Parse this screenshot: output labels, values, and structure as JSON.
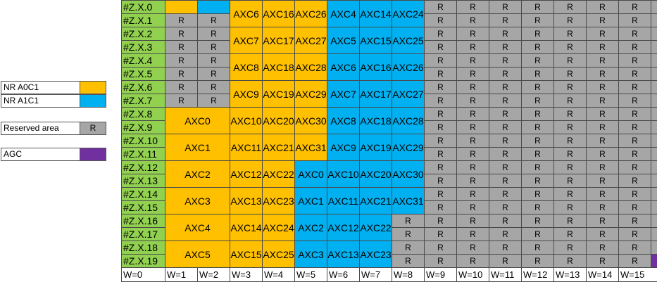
{
  "colors": {
    "nr_a0c1": "#FFC000",
    "nr_a1c1": "#00B0F0",
    "reserved": "#A6A6A6",
    "agc": "#7030A0",
    "row_label": "#92D050",
    "white": "#FFFFFF"
  },
  "legend": [
    {
      "label": "NR A0C1",
      "color_key": "nr_a0c1",
      "text": ""
    },
    {
      "label": "NR A1C1",
      "color_key": "nr_a1c1",
      "text": ""
    },
    {
      "label": "Reserved area",
      "color_key": "reserved",
      "text": "R"
    },
    {
      "label": "AGC",
      "color_key": "agc",
      "text": ""
    }
  ],
  "rows": [
    "#Z.X.0",
    "#Z.X.1",
    "#Z.X.2",
    "#Z.X.3",
    "#Z.X.4",
    "#Z.X.5",
    "#Z.X.6",
    "#Z.X.7",
    "#Z.X.8",
    "#Z.X.9",
    "#Z.X.10",
    "#Z.X.11",
    "#Z.X.12",
    "#Z.X.13",
    "#Z.X.14",
    "#Z.X.15",
    "#Z.X.16",
    "#Z.X.17",
    "#Z.X.18",
    "#Z.X.19"
  ],
  "columns": [
    "W=0",
    "W=1",
    "W=2",
    "W=3",
    "W=4",
    "W=5",
    "W=6",
    "W=7",
    "W=8",
    "W=9",
    "W=10",
    "W=11",
    "W=12",
    "W=13",
    "W=14",
    "W=15"
  ],
  "reserved_text": "R",
  "blocks": [
    {
      "row": 0,
      "col": 1,
      "rowspan": 1,
      "colspan": 1,
      "color": "nr_a0c1",
      "text": ""
    },
    {
      "row": 0,
      "col": 2,
      "rowspan": 1,
      "colspan": 1,
      "color": "nr_a1c1",
      "text": ""
    },
    {
      "row": 0,
      "col": 3,
      "rowspan": 2,
      "colspan": 1,
      "color": "nr_a0c1",
      "text": "AXC6"
    },
    {
      "row": 0,
      "col": 4,
      "rowspan": 2,
      "colspan": 1,
      "color": "nr_a0c1",
      "text": "AXC16"
    },
    {
      "row": 0,
      "col": 5,
      "rowspan": 2,
      "colspan": 1,
      "color": "nr_a0c1",
      "text": "AXC26"
    },
    {
      "row": 0,
      "col": 6,
      "rowspan": 2,
      "colspan": 1,
      "color": "nr_a1c1",
      "text": "AXC4"
    },
    {
      "row": 0,
      "col": 7,
      "rowspan": 2,
      "colspan": 1,
      "color": "nr_a1c1",
      "text": "AXC14"
    },
    {
      "row": 0,
      "col": 8,
      "rowspan": 2,
      "colspan": 1,
      "color": "nr_a1c1",
      "text": "AXC24"
    },
    {
      "row": 2,
      "col": 3,
      "rowspan": 2,
      "colspan": 1,
      "color": "nr_a0c1",
      "text": "AXC7"
    },
    {
      "row": 2,
      "col": 4,
      "rowspan": 2,
      "colspan": 1,
      "color": "nr_a0c1",
      "text": "AXC17"
    },
    {
      "row": 2,
      "col": 5,
      "rowspan": 2,
      "colspan": 1,
      "color": "nr_a0c1",
      "text": "AXC27"
    },
    {
      "row": 2,
      "col": 6,
      "rowspan": 2,
      "colspan": 1,
      "color": "nr_a1c1",
      "text": "AXC5"
    },
    {
      "row": 2,
      "col": 7,
      "rowspan": 2,
      "colspan": 1,
      "color": "nr_a1c1",
      "text": "AXC15"
    },
    {
      "row": 2,
      "col": 8,
      "rowspan": 2,
      "colspan": 1,
      "color": "nr_a1c1",
      "text": "AXC25"
    },
    {
      "row": 4,
      "col": 3,
      "rowspan": 2,
      "colspan": 1,
      "color": "nr_a0c1",
      "text": "AXC8"
    },
    {
      "row": 4,
      "col": 4,
      "rowspan": 2,
      "colspan": 1,
      "color": "nr_a0c1",
      "text": "AXC18"
    },
    {
      "row": 4,
      "col": 5,
      "rowspan": 2,
      "colspan": 1,
      "color": "nr_a0c1",
      "text": "AXC28"
    },
    {
      "row": 4,
      "col": 6,
      "rowspan": 2,
      "colspan": 1,
      "color": "nr_a1c1",
      "text": "AXC6"
    },
    {
      "row": 4,
      "col": 7,
      "rowspan": 2,
      "colspan": 1,
      "color": "nr_a1c1",
      "text": "AXC16"
    },
    {
      "row": 4,
      "col": 8,
      "rowspan": 2,
      "colspan": 1,
      "color": "nr_a1c1",
      "text": "AXC26"
    },
    {
      "row": 6,
      "col": 3,
      "rowspan": 2,
      "colspan": 1,
      "color": "nr_a0c1",
      "text": "AXC9"
    },
    {
      "row": 6,
      "col": 4,
      "rowspan": 2,
      "colspan": 1,
      "color": "nr_a0c1",
      "text": "AXC19"
    },
    {
      "row": 6,
      "col": 5,
      "rowspan": 2,
      "colspan": 1,
      "color": "nr_a0c1",
      "text": "AXC29"
    },
    {
      "row": 6,
      "col": 6,
      "rowspan": 2,
      "colspan": 1,
      "color": "nr_a1c1",
      "text": "AXC7"
    },
    {
      "row": 6,
      "col": 7,
      "rowspan": 2,
      "colspan": 1,
      "color": "nr_a1c1",
      "text": "AXC17"
    },
    {
      "row": 6,
      "col": 8,
      "rowspan": 2,
      "colspan": 1,
      "color": "nr_a1c1",
      "text": "AXC27"
    },
    {
      "row": 8,
      "col": 1,
      "rowspan": 2,
      "colspan": 2,
      "color": "nr_a0c1",
      "text": "AXC0"
    },
    {
      "row": 8,
      "col": 3,
      "rowspan": 2,
      "colspan": 1,
      "color": "nr_a0c1",
      "text": "AXC10"
    },
    {
      "row": 8,
      "col": 4,
      "rowspan": 2,
      "colspan": 1,
      "color": "nr_a0c1",
      "text": "AXC20"
    },
    {
      "row": 8,
      "col": 5,
      "rowspan": 2,
      "colspan": 1,
      "color": "nr_a0c1",
      "text": "AXC30"
    },
    {
      "row": 8,
      "col": 6,
      "rowspan": 2,
      "colspan": 1,
      "color": "nr_a1c1",
      "text": "AXC8"
    },
    {
      "row": 8,
      "col": 7,
      "rowspan": 2,
      "colspan": 1,
      "color": "nr_a1c1",
      "text": "AXC18"
    },
    {
      "row": 8,
      "col": 8,
      "rowspan": 2,
      "colspan": 1,
      "color": "nr_a1c1",
      "text": "AXC28"
    },
    {
      "row": 10,
      "col": 1,
      "rowspan": 2,
      "colspan": 2,
      "color": "nr_a0c1",
      "text": "AXC1"
    },
    {
      "row": 10,
      "col": 3,
      "rowspan": 2,
      "colspan": 1,
      "color": "nr_a0c1",
      "text": "AXC11"
    },
    {
      "row": 10,
      "col": 4,
      "rowspan": 2,
      "colspan": 1,
      "color": "nr_a0c1",
      "text": "AXC21"
    },
    {
      "row": 10,
      "col": 5,
      "rowspan": 2,
      "colspan": 1,
      "color": "nr_a0c1",
      "text": "AXC31"
    },
    {
      "row": 10,
      "col": 6,
      "rowspan": 2,
      "colspan": 1,
      "color": "nr_a1c1",
      "text": "AXC9"
    },
    {
      "row": 10,
      "col": 7,
      "rowspan": 2,
      "colspan": 1,
      "color": "nr_a1c1",
      "text": "AXC19"
    },
    {
      "row": 10,
      "col": 8,
      "rowspan": 2,
      "colspan": 1,
      "color": "nr_a1c1",
      "text": "AXC29"
    },
    {
      "row": 12,
      "col": 1,
      "rowspan": 2,
      "colspan": 2,
      "color": "nr_a0c1",
      "text": "AXC2"
    },
    {
      "row": 12,
      "col": 3,
      "rowspan": 2,
      "colspan": 1,
      "color": "nr_a0c1",
      "text": "AXC12"
    },
    {
      "row": 12,
      "col": 4,
      "rowspan": 2,
      "colspan": 1,
      "color": "nr_a0c1",
      "text": "AXC22"
    },
    {
      "row": 12,
      "col": 5,
      "rowspan": 2,
      "colspan": 1,
      "color": "nr_a1c1",
      "text": "AXC0"
    },
    {
      "row": 12,
      "col": 6,
      "rowspan": 2,
      "colspan": 1,
      "color": "nr_a1c1",
      "text": "AXC10"
    },
    {
      "row": 12,
      "col": 7,
      "rowspan": 2,
      "colspan": 1,
      "color": "nr_a1c1",
      "text": "AXC20"
    },
    {
      "row": 12,
      "col": 8,
      "rowspan": 2,
      "colspan": 1,
      "color": "nr_a1c1",
      "text": "AXC30"
    },
    {
      "row": 14,
      "col": 1,
      "rowspan": 2,
      "colspan": 2,
      "color": "nr_a0c1",
      "text": "AXC3"
    },
    {
      "row": 14,
      "col": 3,
      "rowspan": 2,
      "colspan": 1,
      "color": "nr_a0c1",
      "text": "AXC13"
    },
    {
      "row": 14,
      "col": 4,
      "rowspan": 2,
      "colspan": 1,
      "color": "nr_a0c1",
      "text": "AXC23"
    },
    {
      "row": 14,
      "col": 5,
      "rowspan": 2,
      "colspan": 1,
      "color": "nr_a1c1",
      "text": "AXC1"
    },
    {
      "row": 14,
      "col": 6,
      "rowspan": 2,
      "colspan": 1,
      "color": "nr_a1c1",
      "text": "AXC11"
    },
    {
      "row": 14,
      "col": 7,
      "rowspan": 2,
      "colspan": 1,
      "color": "nr_a1c1",
      "text": "AXC21"
    },
    {
      "row": 14,
      "col": 8,
      "rowspan": 2,
      "colspan": 1,
      "color": "nr_a1c1",
      "text": "AXC31"
    },
    {
      "row": 16,
      "col": 1,
      "rowspan": 2,
      "colspan": 2,
      "color": "nr_a0c1",
      "text": "AXC4"
    },
    {
      "row": 16,
      "col": 3,
      "rowspan": 2,
      "colspan": 1,
      "color": "nr_a0c1",
      "text": "AXC14"
    },
    {
      "row": 16,
      "col": 4,
      "rowspan": 2,
      "colspan": 1,
      "color": "nr_a0c1",
      "text": "AXC24"
    },
    {
      "row": 16,
      "col": 5,
      "rowspan": 2,
      "colspan": 1,
      "color": "nr_a1c1",
      "text": "AXC2"
    },
    {
      "row": 16,
      "col": 6,
      "rowspan": 2,
      "colspan": 1,
      "color": "nr_a1c1",
      "text": "AXC12"
    },
    {
      "row": 16,
      "col": 7,
      "rowspan": 2,
      "colspan": 1,
      "color": "nr_a1c1",
      "text": "AXC22"
    },
    {
      "row": 18,
      "col": 1,
      "rowspan": 2,
      "colspan": 2,
      "color": "nr_a0c1",
      "text": "AXC5"
    },
    {
      "row": 18,
      "col": 3,
      "rowspan": 2,
      "colspan": 1,
      "color": "nr_a0c1",
      "text": "AXC15"
    },
    {
      "row": 18,
      "col": 4,
      "rowspan": 2,
      "colspan": 1,
      "color": "nr_a0c1",
      "text": "AXC25"
    },
    {
      "row": 18,
      "col": 5,
      "rowspan": 2,
      "colspan": 1,
      "color": "nr_a1c1",
      "text": "AXC3"
    },
    {
      "row": 18,
      "col": 6,
      "rowspan": 2,
      "colspan": 1,
      "color": "nr_a1c1",
      "text": "AXC13"
    },
    {
      "row": 18,
      "col": 7,
      "rowspan": 2,
      "colspan": 1,
      "color": "nr_a1c1",
      "text": "AXC23"
    },
    {
      "row": 19,
      "col": 16,
      "rowspan": 1,
      "colspan": 1,
      "color": "agc",
      "text": ""
    }
  ]
}
